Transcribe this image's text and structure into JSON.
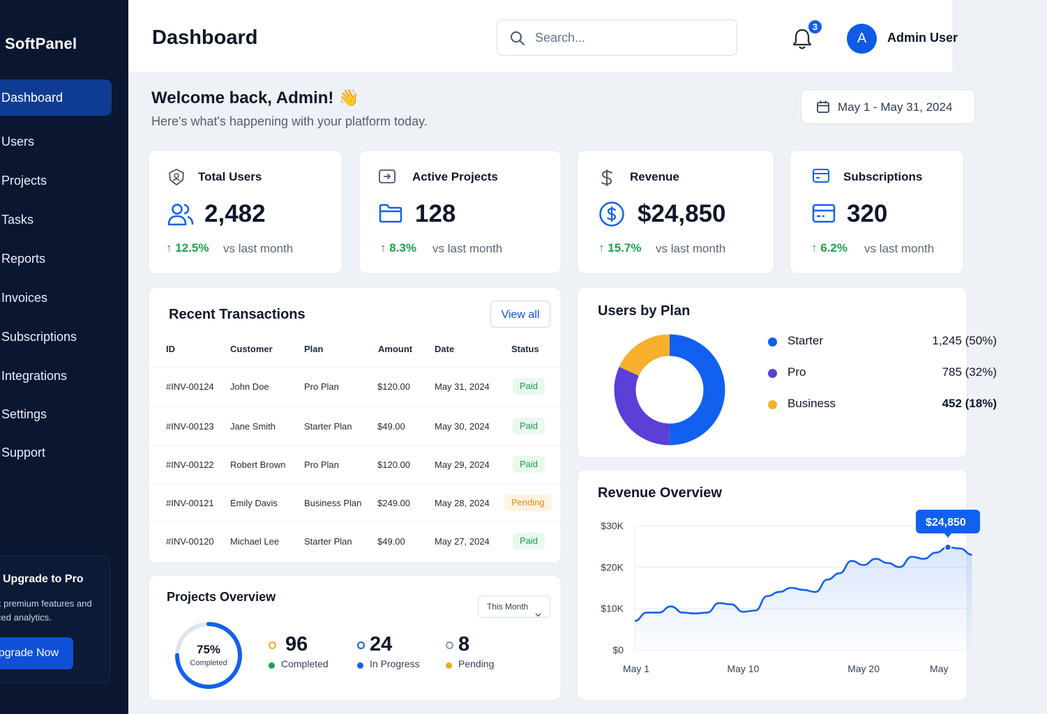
{
  "app": {
    "brand": "SoftPanel"
  },
  "sidebar": {
    "items": [
      {
        "label": "Dashboard",
        "active": true
      },
      {
        "label": "Users"
      },
      {
        "label": "Projects"
      },
      {
        "label": "Tasks"
      },
      {
        "label": "Reports"
      },
      {
        "label": "Invoices"
      },
      {
        "label": "Subscriptions"
      },
      {
        "label": "Integrations"
      },
      {
        "label": "Settings"
      },
      {
        "label": "Support"
      }
    ],
    "upgrade": {
      "title": "Upgrade to Pro",
      "desc": "k premium features and\nced analytics.",
      "button": "pgrade Now"
    }
  },
  "header": {
    "title": "Dashboard",
    "search_placeholder": "Search...",
    "notifications": "3",
    "avatar_letter": "A",
    "user_name": "Admin User"
  },
  "welcome": {
    "title": "Welcome back, Admin! 👋",
    "subtitle": "Here's what's happening with your platform today.",
    "date_range": "May 1 - May 31, 2024"
  },
  "stats": [
    {
      "title": "Total Users",
      "value": "2,482",
      "change": "12.5%",
      "vs": "vs last month",
      "icon": "users-icon"
    },
    {
      "title": "Active Projects",
      "value": "128",
      "change": "8.3%",
      "vs": "vs last month",
      "icon": "folder-icon"
    },
    {
      "title": "Revenue",
      "value": "$24,850",
      "change": "15.7%",
      "vs": "vs last month",
      "icon": "dollar-icon"
    },
    {
      "title": "Subscriptions",
      "value": "320",
      "change": "6.2%",
      "vs": "vs last month",
      "icon": "card-icon"
    }
  ],
  "transactions": {
    "title": "Recent Transactions",
    "view_all": "View all",
    "columns": [
      "ID",
      "Customer",
      "Plan",
      "Amount",
      "Date",
      "Status"
    ],
    "rows": [
      {
        "id": "#INV-00124",
        "customer": "John Doe",
        "plan": "Pro Plan",
        "amount": "$120.00",
        "date": "May 31, 2024",
        "status": "Paid"
      },
      {
        "id": "#INV-00123",
        "customer": "Jane Smith",
        "plan": "Starter Plan",
        "amount": "$49.00",
        "date": "May 30, 2024",
        "status": "Paid"
      },
      {
        "id": "#INV-00122",
        "customer": "Robert Brown",
        "plan": "Pro Plan",
        "amount": "$120.00",
        "date": "May 29, 2024",
        "status": "Paid"
      },
      {
        "id": "#INV-00121",
        "customer": "Emily Davis",
        "plan": "Business Plan",
        "amount": "$249.00",
        "date": "May 28, 2024",
        "status": "Pending"
      },
      {
        "id": "#INV-00120",
        "customer": "Michael Lee",
        "plan": "Starter Plan",
        "amount": "$49.00",
        "date": "May 27, 2024",
        "status": "Paid"
      }
    ]
  },
  "projects": {
    "title": "Projects Overview",
    "period": "This Month",
    "percent": "75%",
    "percent_label": "Completed",
    "percent_value": 75,
    "stats": [
      {
        "value": "96",
        "label": "Completed",
        "color": "#f5a623",
        "dot": "#18a44b"
      },
      {
        "value": "24",
        "label": "In Progress",
        "color": "#1160ef",
        "dot": "#1160ef"
      },
      {
        "value": "8",
        "label": "Pending",
        "color": "#8b95a7",
        "dot": "#f5a623"
      }
    ]
  },
  "users_by_plan": {
    "title": "Users by Plan",
    "plans": [
      {
        "name": "Starter",
        "value": "1,245 (50%)",
        "count": 1245,
        "color": "#1160ef"
      },
      {
        "name": "Pro",
        "value": "785 (32%)",
        "count": 785,
        "color": "#5b3fd6"
      },
      {
        "name": "Business",
        "value": "452 (18%)",
        "count": 452,
        "color": "#f6b02b"
      }
    ]
  },
  "chart_data": {
    "type": "line",
    "title": "Revenue Overview",
    "x_ticks": [
      "May 1",
      "May 10",
      "May 20",
      "May"
    ],
    "y_ticks": [
      "$30K",
      "$20K",
      "$10K",
      "$0"
    ],
    "ylim": [
      0,
      30000
    ],
    "callout": "$24,850",
    "x": [
      1,
      2,
      3,
      4,
      5,
      6,
      7,
      8,
      9,
      10,
      11,
      12,
      13,
      14,
      15,
      16,
      17,
      18,
      19,
      20,
      21,
      22,
      23,
      24,
      25,
      26,
      27,
      28,
      29
    ],
    "values": [
      7000,
      9000,
      9000,
      10500,
      9000,
      8800,
      9000,
      11300,
      11000,
      9200,
      9500,
      13000,
      14000,
      15000,
      14500,
      14000,
      17000,
      18500,
      21500,
      20500,
      22000,
      21000,
      20000,
      22500,
      22000,
      23500,
      24800,
      24500,
      23000
    ],
    "grid": true,
    "color": "#1160ef"
  }
}
